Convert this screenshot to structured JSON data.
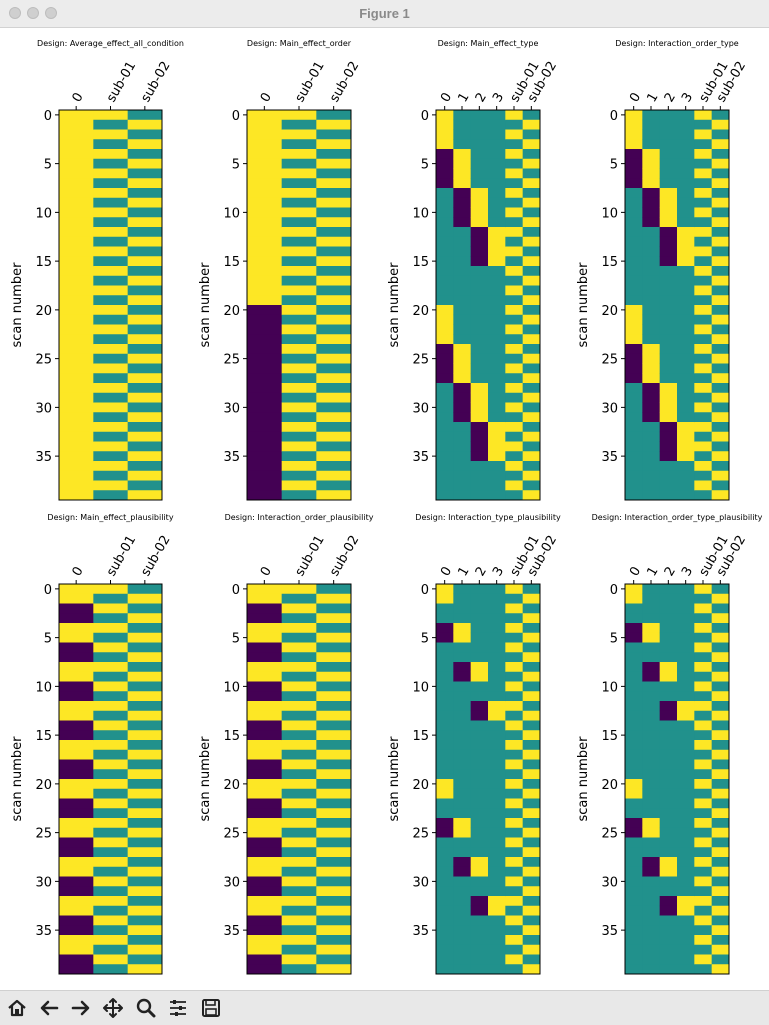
{
  "window": {
    "title": "Figure 1"
  },
  "colors": {
    "yellow": "#fde725",
    "teal": "#21918c",
    "purple": "#440154"
  },
  "figure": {
    "ylabel": "scan number",
    "yticks": [
      "0",
      "5",
      "10",
      "15",
      "20",
      "25",
      "30",
      "35"
    ],
    "panels": [
      {
        "title": "Design: Average_effect_all_condition",
        "xticks": [
          "0",
          "sub-01",
          "sub-02"
        ],
        "columns": [
          "1111111111111111111111111111111111111111",
          "1010101010101010101010101010101010101010",
          "0101010101010101010101010101010101010101"
        ]
      },
      {
        "title": "Design: Main_effect_order",
        "xticks": [
          "0",
          "sub-01",
          "sub-02"
        ],
        "columns": [
          "1111111111111111111100000000000000000000",
          "1010101010101010101010101010101010101010",
          "0101010101010101010101010101010101010101"
        ]
      },
      {
        "title": "Design: Main_effect_type",
        "xticks": [
          "0",
          "1",
          "2",
          "3",
          "sub-01",
          "sub-02"
        ],
        "columns": [
          "1111000000000000000011110000000000000000",
          "0000111100000000000000001111000000000000",
          "0000000011110000000000000000111100000000",
          "0000000000001111000000000000000011110000",
          "1010101010101010101010101010101010101010",
          "0101010101010101010101010101010101010101"
        ]
      },
      {
        "title": "Design: Interaction_order_type",
        "xticks": [
          "0",
          "1",
          "2",
          "3",
          "sub-01",
          "sub-02"
        ],
        "columns": [
          "1111000000000000000011110000000000000000",
          "0000111100000000000000001111000000000000",
          "0000000011110000000000000000111100000000",
          "0000000000001111000000000000000011110000",
          "1010101010101010101010101010101010101010",
          "0101010101010101010101010101010101010101"
        ]
      },
      {
        "title": "Design: Main_effect_plausibility",
        "xticks": [
          "0",
          "sub-01",
          "sub-02"
        ],
        "columns": [
          "1100110011001100110011001100110011001100",
          "1010101010101010101010101010101010101010",
          "0101010101010101010101010101010101010101"
        ]
      },
      {
        "title": "Design: Interaction_order_plausibility",
        "xticks": [
          "0",
          "sub-01",
          "sub-02"
        ],
        "columns": [
          "1100110011001100110011001100110011001100",
          "1010101010101010101010101010101010101010",
          "0101010101010101010101010101010101010101"
        ]
      },
      {
        "title": "Design: Interaction_type_plausibility",
        "xticks": [
          "0",
          "1",
          "2",
          "3",
          "sub-01",
          "sub-02"
        ],
        "columns": [
          "1100000000000000000011000000000000000000",
          "0000110000000000000000001100000000000000",
          "0000000011000000000000000000110000000000",
          "0000000000001100000000000000000011000000",
          "1010101010101010101010101010101010101010",
          "0101010101010101010101010101010101010101"
        ]
      },
      {
        "title": "Design: Interaction_order_type_plausibility",
        "xticks": [
          "0",
          "1",
          "2",
          "3",
          "sub-01",
          "sub-02"
        ],
        "columns": [
          "1100000000000000000011000000000000000000",
          "0000110000000000000000001100000000000000",
          "0000000011000000000000000000110000000000",
          "0000000000001100000000000000000011000000",
          "1010101010101010101010101010101010101010",
          "0101010101010101010101010101010101010101"
        ]
      }
    ]
  },
  "toolbar": [
    {
      "name": "home-icon"
    },
    {
      "name": "back-arrow-icon"
    },
    {
      "name": "forward-arrow-icon"
    },
    {
      "name": "pan-move-icon"
    },
    {
      "name": "zoom-magnifier-icon"
    },
    {
      "name": "configure-subplots-icon"
    },
    {
      "name": "save-floppy-icon"
    }
  ]
}
